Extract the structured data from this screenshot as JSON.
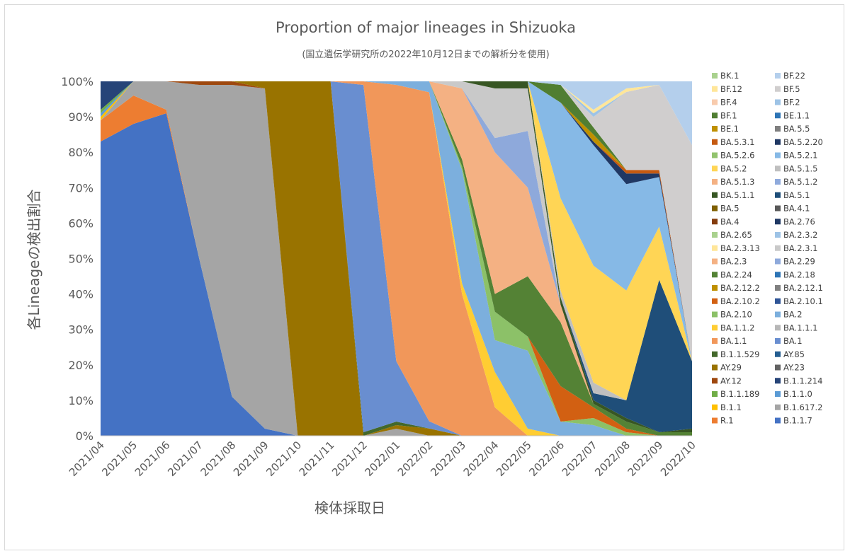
{
  "chart_data": {
    "type": "area",
    "stacked": true,
    "normalized": true,
    "title": "Proportion of major lineages in Shizuoka",
    "subtitle": "(国立遺伝学研究所の2022年10月12日までの解析分を使用)",
    "xlabel": "検体採取日",
    "ylabel": "各Lineageの検出割合",
    "ylim": [
      0,
      100
    ],
    "yticks": [
      "0%",
      "10%",
      "20%",
      "30%",
      "40%",
      "50%",
      "60%",
      "70%",
      "80%",
      "90%",
      "100%"
    ],
    "grid": false,
    "legend_position": "right",
    "x": [
      "2021/04",
      "2021/05",
      "2021/06",
      "2021/07",
      "2021/08",
      "2021/09",
      "2021/10",
      "2021/11",
      "2021/12",
      "2022/01",
      "2022/02",
      "2022/03",
      "2022/04",
      "2022/05",
      "2022/06",
      "2022/07",
      "2022/08",
      "2022/09",
      "2022/10"
    ],
    "series": [
      {
        "name": "B.1.1.7",
        "color": "#4472C4",
        "values": [
          83,
          88,
          91,
          50,
          11,
          2,
          0,
          0,
          0,
          0,
          0,
          0,
          0,
          0,
          0,
          0,
          0,
          0,
          0
        ]
      },
      {
        "name": "R.1",
        "color": "#ED7D31",
        "values": [
          6,
          8,
          1,
          0,
          0,
          0,
          0,
          0,
          0,
          0,
          0,
          0,
          0,
          0,
          0,
          0,
          0,
          0,
          0
        ]
      },
      {
        "name": "B.1.617.2",
        "color": "#A5A5A5",
        "values": [
          0,
          4,
          8,
          49,
          88,
          96,
          0,
          0,
          0,
          2,
          0,
          0,
          0,
          0,
          0,
          0,
          0,
          0,
          0
        ]
      },
      {
        "name": "B.1.1",
        "color": "#FFC000",
        "values": [
          1,
          0,
          0,
          0,
          0,
          0,
          0,
          0,
          0,
          0,
          0,
          0,
          0,
          0,
          0,
          0,
          0,
          0,
          0
        ]
      },
      {
        "name": "B.1.1.0",
        "color": "#5B9BD5",
        "values": [
          1,
          0,
          0,
          0,
          0,
          0,
          0,
          0,
          0,
          0,
          0,
          0,
          0,
          0,
          0,
          0,
          0,
          0,
          0
        ]
      },
      {
        "name": "B.1.1.189",
        "color": "#70AD47",
        "values": [
          1,
          0,
          0,
          0,
          0,
          0,
          0,
          0,
          0,
          0,
          0,
          0,
          0,
          0,
          0,
          0,
          0,
          0,
          0
        ]
      },
      {
        "name": "B.1.1.214",
        "color": "#264478",
        "values": [
          8,
          0,
          0,
          0,
          0,
          0,
          0,
          0,
          0,
          0,
          0,
          0,
          0,
          0,
          0,
          0,
          0,
          0,
          0
        ]
      },
      {
        "name": "AY.12",
        "color": "#9E480E",
        "values": [
          0,
          0,
          0,
          1,
          1,
          0,
          0,
          0,
          0,
          0,
          0,
          0,
          0,
          0,
          0,
          0,
          0,
          0,
          0
        ]
      },
      {
        "name": "AY.29",
        "color": "#997300",
        "values": [
          0,
          0,
          0,
          0,
          0,
          2,
          100,
          100,
          0,
          1,
          2,
          0,
          0,
          0,
          0,
          0,
          0,
          0,
          0
        ]
      },
      {
        "name": "B.1.1.529",
        "color": "#43682B",
        "values": [
          0,
          0,
          0,
          0,
          0,
          0,
          0,
          0,
          1,
          1,
          0,
          0,
          0,
          0,
          0,
          0,
          0,
          0,
          0
        ]
      },
      {
        "name": "BA.1",
        "color": "#698ED0",
        "values": [
          0,
          0,
          0,
          0,
          0,
          0,
          0,
          0,
          98,
          17,
          2,
          0,
          0,
          0,
          0,
          0,
          0,
          0,
          0
        ]
      },
      {
        "name": "BA.1.1",
        "color": "#F1975A",
        "values": [
          0,
          0,
          0,
          0,
          0,
          0,
          0,
          0,
          1,
          78,
          91,
          40,
          8,
          0,
          0,
          0,
          0,
          0,
          0
        ]
      },
      {
        "name": "BA.1.1.2",
        "color": "#FFCD33",
        "values": [
          0,
          0,
          0,
          0,
          0,
          0,
          0,
          0,
          0,
          0,
          0,
          3,
          10,
          2,
          0,
          0,
          0,
          0,
          0
        ]
      },
      {
        "name": "BA.2",
        "color": "#7CAFDD",
        "values": [
          0,
          0,
          0,
          0,
          0,
          0,
          0,
          0,
          0,
          1,
          3,
          32,
          9,
          22,
          4,
          3,
          0,
          0,
          0
        ]
      },
      {
        "name": "BA.2.10",
        "color": "#8CC168",
        "values": [
          0,
          0,
          0,
          0,
          0,
          0,
          0,
          0,
          0,
          0,
          0,
          1,
          8,
          4,
          0,
          2,
          1,
          0,
          0
        ]
      },
      {
        "name": "BA.2.10.2",
        "color": "#D26012",
        "values": [
          0,
          0,
          0,
          0,
          0,
          0,
          0,
          0,
          0,
          0,
          0,
          0,
          0,
          0,
          10,
          3,
          1,
          0,
          0
        ]
      },
      {
        "name": "BA.2.24",
        "color": "#548235",
        "values": [
          0,
          0,
          0,
          0,
          0,
          0,
          0,
          0,
          0,
          0,
          0,
          2,
          5,
          17,
          18,
          1,
          2,
          1,
          1
        ]
      },
      {
        "name": "BA.2.3",
        "color": "#F4B183",
        "values": [
          0,
          0,
          0,
          0,
          0,
          0,
          0,
          0,
          0,
          0,
          0,
          20,
          40,
          25,
          5,
          0,
          0,
          0,
          0
        ]
      },
      {
        "name": "BA.2.29",
        "color": "#8EA9DB",
        "values": [
          0,
          0,
          0,
          0,
          0,
          0,
          0,
          0,
          0,
          0,
          0,
          0,
          4,
          16,
          0,
          0,
          0,
          0,
          0
        ]
      },
      {
        "name": "BA.2.3.1",
        "color": "#C9C9C9",
        "values": [
          0,
          0,
          0,
          0,
          0,
          0,
          0,
          0,
          0,
          0,
          0,
          2,
          14,
          12,
          0,
          0,
          0,
          0,
          0
        ]
      },
      {
        "name": "BA.5.1.1",
        "color": "#375623",
        "values": [
          0,
          0,
          0,
          0,
          0,
          0,
          0,
          0,
          0,
          0,
          0,
          0,
          2,
          2,
          2,
          1,
          1,
          0,
          1
        ]
      },
      {
        "name": "BA.5.1",
        "color": "#1F4E79",
        "values": [
          0,
          0,
          0,
          0,
          0,
          0,
          0,
          0,
          0,
          0,
          0,
          0,
          0,
          0,
          0,
          2,
          5,
          43,
          19
        ]
      },
      {
        "name": "BA.5.1.5",
        "color": "#BFBFBF",
        "values": [
          0,
          0,
          0,
          0,
          0,
          0,
          0,
          0,
          0,
          0,
          0,
          0,
          0,
          0,
          2,
          3,
          0,
          0,
          0
        ]
      },
      {
        "name": "BA.5.2",
        "color": "#FFD555",
        "values": [
          0,
          0,
          0,
          0,
          0,
          0,
          0,
          0,
          0,
          0,
          0,
          0,
          0,
          0,
          26,
          33,
          31,
          15,
          0
        ]
      },
      {
        "name": "BA.5.2.1",
        "color": "#86B9E6",
        "values": [
          0,
          0,
          0,
          0,
          0,
          0,
          0,
          0,
          0,
          0,
          0,
          0,
          0,
          0,
          27,
          34,
          30,
          14,
          0
        ]
      },
      {
        "name": "BA.5.2.20",
        "color": "#203864",
        "values": [
          0,
          0,
          0,
          0,
          0,
          0,
          0,
          0,
          0,
          0,
          0,
          0,
          0,
          0,
          0,
          1,
          3,
          1,
          0
        ]
      },
      {
        "name": "BA.5.3.1",
        "color": "#C55A11",
        "values": [
          0,
          0,
          0,
          0,
          0,
          0,
          0,
          0,
          0,
          0,
          0,
          0,
          0,
          0,
          0,
          0,
          1,
          1,
          0
        ]
      },
      {
        "name": "BE.1",
        "color": "#BF9000",
        "values": [
          0,
          0,
          0,
          0,
          0,
          0,
          0,
          0,
          0,
          0,
          0,
          0,
          0,
          0,
          0,
          2,
          0,
          0,
          0
        ]
      },
      {
        "name": "BF.1",
        "color": "#507E32",
        "values": [
          0,
          0,
          0,
          0,
          0,
          0,
          0,
          0,
          0,
          0,
          0,
          0,
          0,
          0,
          5,
          2,
          0,
          0,
          0
        ]
      },
      {
        "name": "BF.5",
        "color": "#D0CECE",
        "values": [
          0,
          0,
          0,
          0,
          0,
          0,
          0,
          0,
          0,
          0,
          0,
          0,
          0,
          0,
          0,
          3,
          22,
          24,
          61
        ]
      },
      {
        "name": "BF.2",
        "color": "#9DC3E6",
        "values": [
          0,
          0,
          0,
          0,
          0,
          0,
          0,
          0,
          0,
          0,
          0,
          0,
          0,
          0,
          0,
          1,
          0,
          0,
          0
        ]
      },
      {
        "name": "BF.12",
        "color": "#FFE699",
        "values": [
          0,
          0,
          0,
          0,
          0,
          0,
          0,
          0,
          0,
          0,
          0,
          0,
          0,
          0,
          0,
          1,
          1,
          0,
          0
        ]
      },
      {
        "name": "BF.22",
        "color": "#B4CFEC",
        "values": [
          0,
          0,
          0,
          0,
          0,
          0,
          0,
          0,
          0,
          0,
          0,
          0,
          0,
          0,
          1,
          8,
          2,
          1,
          18
        ]
      }
    ],
    "legend": [
      [
        "BK.1",
        "#A9D18E"
      ],
      [
        "BF.22",
        "#B4CFEC"
      ],
      [
        "BF.12",
        "#FFE699"
      ],
      [
        "BF.5",
        "#D0CECE"
      ],
      [
        "BF.4",
        "#F8CBAD"
      ],
      [
        "BF.2",
        "#9DC3E6"
      ],
      [
        "BF.1",
        "#507E32"
      ],
      [
        "BE.1.1",
        "#2E75B6"
      ],
      [
        "BE.1",
        "#BF9000"
      ],
      [
        "BA.5.5",
        "#7F7F7F"
      ],
      [
        "BA.5.3.1",
        "#C55A11"
      ],
      [
        "BA.5.2.20",
        "#203864"
      ],
      [
        "BA.5.2.6",
        "#92C36E"
      ],
      [
        "BA.5.2.1",
        "#86B9E6"
      ],
      [
        "BA.5.2",
        "#FFD555"
      ],
      [
        "BA.5.1.5",
        "#BFBFBF"
      ],
      [
        "BA.5.1.3",
        "#F4B183"
      ],
      [
        "BA.5.1.2",
        "#8FAADC"
      ],
      [
        "BA.5.1.1",
        "#375623"
      ],
      [
        "BA.5.1",
        "#1F4E79"
      ],
      [
        "BA.5",
        "#7F6000"
      ],
      [
        "BA.4.1",
        "#595959"
      ],
      [
        "BA.4",
        "#843C0C"
      ],
      [
        "BA.2.76",
        "#1F3864"
      ],
      [
        "BA.2.65",
        "#A9D18E"
      ],
      [
        "BA.2.3.2",
        "#9DC3E6"
      ],
      [
        "BA.2.3.13",
        "#FFE699"
      ],
      [
        "BA.2.3.1",
        "#C9C9C9"
      ],
      [
        "BA.2.3",
        "#F4B183"
      ],
      [
        "BA.2.29",
        "#8EA9DB"
      ],
      [
        "BA.2.24",
        "#548235"
      ],
      [
        "BA.2.18",
        "#2E75B6"
      ],
      [
        "BA.2.12.2",
        "#BF9000"
      ],
      [
        "BA.2.12.1",
        "#808080"
      ],
      [
        "BA.2.10.2",
        "#D26012"
      ],
      [
        "BA.2.10.1",
        "#2F5597"
      ],
      [
        "BA.2.10",
        "#8CC168"
      ],
      [
        "BA.2",
        "#7CAFDD"
      ],
      [
        "BA.1.1.2",
        "#FFCD33"
      ],
      [
        "BA.1.1.1",
        "#B7B7B7"
      ],
      [
        "BA.1.1",
        "#F1975A"
      ],
      [
        "BA.1",
        "#698ED0"
      ],
      [
        "B.1.1.529",
        "#43682B"
      ],
      [
        "AY.85",
        "#255E91"
      ],
      [
        "AY.29",
        "#997300"
      ],
      [
        "AY.23",
        "#636363"
      ],
      [
        "AY.12",
        "#9E480E"
      ],
      [
        "B.1.1.214",
        "#264478"
      ],
      [
        "B.1.1.189",
        "#70AD47"
      ],
      [
        "B.1.1.0",
        "#5B9BD5"
      ],
      [
        "B.1.1",
        "#FFC000"
      ],
      [
        "B.1.617.2",
        "#A5A5A5"
      ],
      [
        "R.1",
        "#ED7D31"
      ],
      [
        "B.1.1.7",
        "#4472C4"
      ]
    ]
  }
}
